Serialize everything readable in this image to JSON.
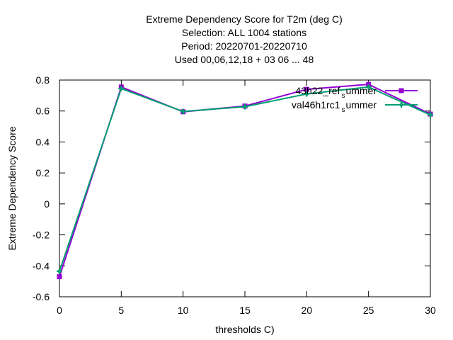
{
  "chart_data": {
    "type": "line",
    "title_lines": [
      "Extreme Dependency Score  for T2m (deg C)",
      "Selection: ALL   1004 stations",
      "Period: 20220701-20220710",
      "Used  00,06,12,18  + 03 06 ... 48"
    ],
    "xlabel": "thresholds C)",
    "ylabel": "Extreme Dependency Score",
    "xlim": [
      0,
      30
    ],
    "ylim": [
      -0.6,
      0.8
    ],
    "xticks": [
      0,
      5,
      10,
      15,
      20,
      25,
      30
    ],
    "yticks": [
      -0.6,
      -0.4,
      -0.2,
      0,
      0.2,
      0.4,
      0.6,
      0.8
    ],
    "ytick_labels": [
      "-0.6",
      "-0.4",
      "-0.2",
      "0",
      "0.2",
      "0.4",
      "0.6",
      "0.8"
    ],
    "legend_position": "top-right",
    "grid": false,
    "x": [
      0,
      5,
      10,
      15,
      20,
      25,
      30
    ],
    "series": [
      {
        "name": "43h22_ref_summer",
        "legend_text": "43h22_ref",
        "legend_sub": "s",
        "legend_tail": "ummer",
        "color": "#9400d3",
        "marker": "square",
        "values": [
          -0.47,
          0.755,
          0.595,
          0.632,
          0.74,
          0.772,
          0.58
        ]
      },
      {
        "name": "val46h1rc1_summer",
        "legend_text": "val46h1rc1",
        "legend_sub": "s",
        "legend_tail": "ummer",
        "color": "#009e73",
        "marker": "plus",
        "values": [
          -0.435,
          0.745,
          0.597,
          0.628,
          0.71,
          0.755,
          0.575
        ]
      }
    ]
  }
}
